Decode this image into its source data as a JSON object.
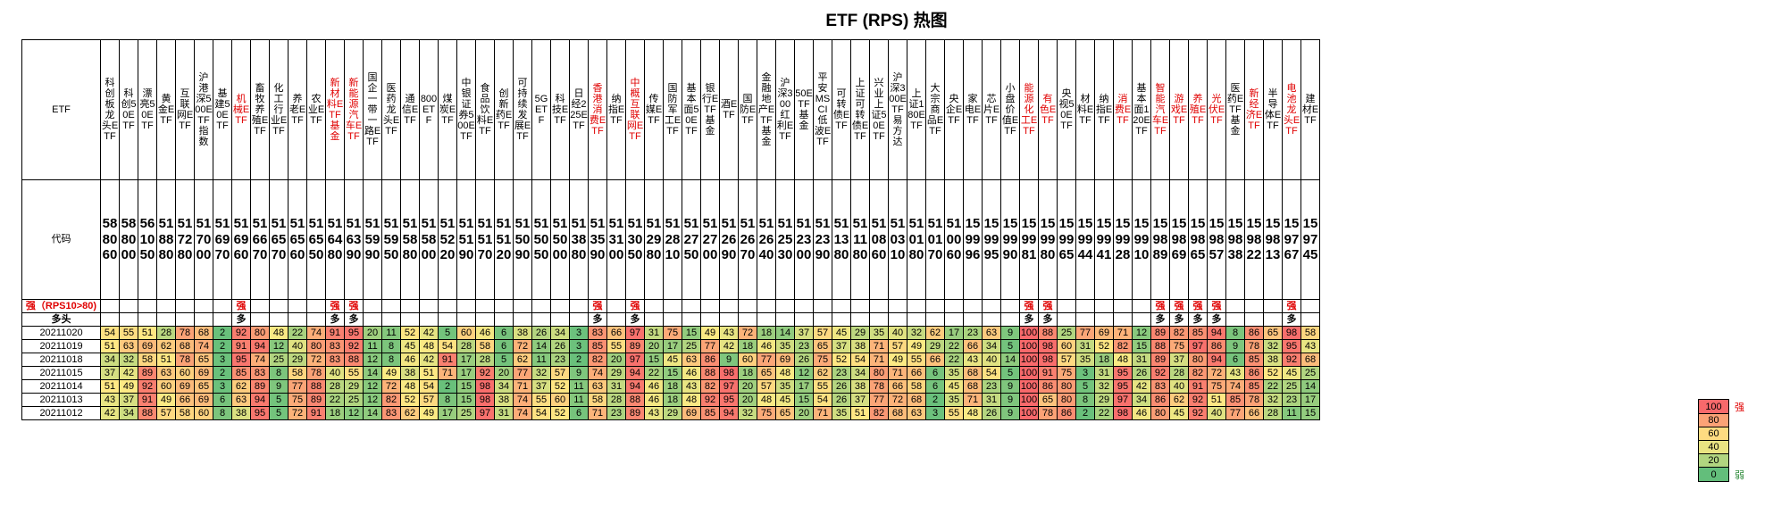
{
  "chart_data": {
    "type": "heatmap",
    "title": "ETF (RPS) 热图",
    "header_label": "ETF",
    "code_label": "代码",
    "strong_label": "强（RPS10>80)",
    "duotou_label": "多头",
    "strong_mark": "强",
    "duotou_mark": "多",
    "columns": [
      {
        "name": "科创板龙头ETF",
        "code": "588060",
        "hl": false,
        "strong": false,
        "duotou": false
      },
      {
        "name": "科创50ETF",
        "code": "588000",
        "hl": false,
        "strong": false,
        "duotou": false
      },
      {
        "name": "漂亮50ETF",
        "code": "561050",
        "hl": false,
        "strong": false,
        "duotou": false
      },
      {
        "name": "黄金ETF",
        "code": "518880",
        "hl": false,
        "strong": false,
        "duotou": false
      },
      {
        "name": "互联网ETF",
        "code": "517280",
        "hl": false,
        "strong": false,
        "duotou": false
      },
      {
        "name": "沪港深500ETF指数",
        "code": "517000",
        "hl": false,
        "strong": false,
        "duotou": false
      },
      {
        "name": "基建50ETF",
        "code": "516970",
        "hl": false,
        "strong": false,
        "duotou": false
      },
      {
        "name": "机械ETF",
        "code": "516960",
        "hl": true,
        "strong": true,
        "duotou": true
      },
      {
        "name": "畜牧养殖ETF",
        "code": "516670",
        "hl": false,
        "strong": false,
        "duotou": false
      },
      {
        "name": "化工行业ETF",
        "code": "516570",
        "hl": false,
        "strong": false,
        "duotou": false
      },
      {
        "name": "养老ETF",
        "code": "516560",
        "hl": false,
        "strong": false,
        "duotou": false
      },
      {
        "name": "农业ETF",
        "code": "516550",
        "hl": false,
        "strong": false,
        "duotou": false
      },
      {
        "name": "新材料ETF基金",
        "code": "516480",
        "hl": true,
        "strong": true,
        "duotou": true
      },
      {
        "name": "新能源汽车ETF",
        "code": "516390",
        "hl": true,
        "strong": true,
        "duotou": true
      },
      {
        "name": "国企一带一路ETF",
        "code": "515990",
        "hl": false,
        "strong": false,
        "duotou": false
      },
      {
        "name": "医药龙头ETF",
        "code": "515950",
        "hl": false,
        "strong": false,
        "duotou": false
      },
      {
        "name": "通信ETF",
        "code": "515880",
        "hl": false,
        "strong": false,
        "duotou": false
      },
      {
        "name": "800ETF",
        "code": "515800",
        "hl": false,
        "strong": false,
        "duotou": false
      },
      {
        "name": "煤炭ETF",
        "code": "515220",
        "hl": false,
        "strong": false,
        "duotou": false
      },
      {
        "name": "中银证券500ETF",
        "code": "515190",
        "hl": false,
        "strong": false,
        "duotou": false
      },
      {
        "name": "食品饮料ETF",
        "code": "515170",
        "hl": false,
        "strong": false,
        "duotou": false
      },
      {
        "name": "创新药ETF",
        "code": "515120",
        "hl": false,
        "strong": false,
        "duotou": false
      },
      {
        "name": "可持续发展ETF",
        "code": "515090",
        "hl": false,
        "strong": false,
        "duotou": false
      },
      {
        "name": "5GETF",
        "code": "515050",
        "hl": false,
        "strong": false,
        "duotou": false
      },
      {
        "name": "科技ETF",
        "code": "515000",
        "hl": false,
        "strong": false,
        "duotou": false
      },
      {
        "name": "日经225ETF",
        "code": "513880",
        "hl": false,
        "strong": false,
        "duotou": false
      },
      {
        "name": "香港消费ETF",
        "code": "513590",
        "hl": true,
        "strong": true,
        "duotou": true
      },
      {
        "name": "纳指ETF",
        "code": "513100",
        "hl": false,
        "strong": false,
        "duotou": false
      },
      {
        "name": "中概互联网ETF",
        "code": "513050",
        "hl": true,
        "strong": true,
        "duotou": true
      },
      {
        "name": "传媒ETF",
        "code": "512980",
        "hl": false,
        "strong": false,
        "duotou": false
      },
      {
        "name": "国防军工ETF",
        "code": "512810",
        "hl": false,
        "strong": false,
        "duotou": false
      },
      {
        "name": "基本面50ETF",
        "code": "512750",
        "hl": false,
        "strong": false,
        "duotou": false
      },
      {
        "name": "银行ETF基金",
        "code": "512700",
        "hl": false,
        "strong": false,
        "duotou": false
      },
      {
        "name": "酒ETF",
        "code": "512690",
        "hl": false,
        "strong": false,
        "duotou": false
      },
      {
        "name": "国防ETF",
        "code": "512670",
        "hl": false,
        "strong": false,
        "duotou": false
      },
      {
        "name": "金融地产ETF基金",
        "code": "512640",
        "hl": false,
        "strong": false,
        "duotou": false
      },
      {
        "name": "沪深300红利ETF",
        "code": "512530",
        "hl": false,
        "strong": false,
        "duotou": false
      },
      {
        "name": "50ETF基金",
        "code": "512300",
        "hl": false,
        "strong": false,
        "duotou": false
      },
      {
        "name": "平安MSCI低波ETF",
        "code": "512390",
        "hl": false,
        "strong": false,
        "duotou": false
      },
      {
        "name": "可转债ETF",
        "code": "511380",
        "hl": false,
        "strong": false,
        "duotou": false
      },
      {
        "name": "上证可转债ETF",
        "code": "511180",
        "hl": false,
        "strong": false,
        "duotou": false
      },
      {
        "name": "兴业上证50ETF",
        "code": "510860",
        "hl": false,
        "strong": false,
        "duotou": false
      },
      {
        "name": "沪深300ETF易方达",
        "code": "510310",
        "hl": false,
        "strong": false,
        "duotou": false
      },
      {
        "name": "上证180ETF",
        "code": "510180",
        "hl": false,
        "strong": false,
        "duotou": false
      },
      {
        "name": "大宗商品ETF",
        "code": "510170",
        "hl": false,
        "strong": false,
        "duotou": false
      },
      {
        "name": "央企ETF",
        "code": "510060",
        "hl": false,
        "strong": false,
        "duotou": false
      },
      {
        "name": "家电ETF",
        "code": "159996",
        "hl": false,
        "strong": false,
        "duotou": false
      },
      {
        "name": "芯片ETF",
        "code": "159995",
        "hl": false,
        "strong": false,
        "duotou": false
      },
      {
        "name": "小盘价值ETF",
        "code": "159990",
        "hl": false,
        "strong": false,
        "duotou": false
      },
      {
        "name": "能源化工ETF",
        "code": "159981",
        "hl": true,
        "strong": true,
        "duotou": true
      },
      {
        "name": "有色ETF",
        "code": "159980",
        "hl": true,
        "strong": true,
        "duotou": true
      },
      {
        "name": "央视50ETF",
        "code": "159965",
        "hl": false,
        "strong": false,
        "duotou": false
      },
      {
        "name": "材料ETF",
        "code": "159944",
        "hl": false,
        "strong": false,
        "duotou": false
      },
      {
        "name": "纳指ETF",
        "code": "159941",
        "hl": false,
        "strong": false,
        "duotou": false
      },
      {
        "name": "消费ETF",
        "code": "159928",
        "hl": true,
        "strong": false,
        "duotou": false
      },
      {
        "name": "基本面120ETF",
        "code": "159910",
        "hl": false,
        "strong": false,
        "duotou": false
      },
      {
        "name": "智能汽车ETF",
        "code": "159889",
        "hl": true,
        "strong": true,
        "duotou": true
      },
      {
        "name": "游戏ETF",
        "code": "159869",
        "hl": true,
        "strong": true,
        "duotou": true
      },
      {
        "name": "养殖ETF",
        "code": "159865",
        "hl": true,
        "strong": true,
        "duotou": true
      },
      {
        "name": "光伏ETF",
        "code": "159857",
        "hl": true,
        "strong": true,
        "duotou": true
      },
      {
        "name": "医药ETF基金",
        "code": "159838",
        "hl": false,
        "strong": false,
        "duotou": false
      },
      {
        "name": "新经济ETF",
        "code": "159822",
        "hl": true,
        "strong": false,
        "duotou": false
      },
      {
        "name": "半导体ETF",
        "code": "159813",
        "hl": false,
        "strong": false,
        "duotou": false
      },
      {
        "name": "电池龙头ETF",
        "code": "159767",
        "hl": true,
        "strong": true,
        "duotou": true
      },
      {
        "name": "建材ETF",
        "code": "159745",
        "hl": false,
        "strong": false,
        "duotou": false
      }
    ],
    "dates": [
      "20211020",
      "20211019",
      "20211018",
      "20211015",
      "20211014",
      "20211013",
      "20211012"
    ],
    "values": [
      [
        54,
        55,
        51,
        28,
        78,
        68,
        2,
        92,
        80,
        48,
        22,
        74,
        91,
        95,
        20,
        11,
        52,
        42,
        5,
        60,
        46,
        6,
        38,
        26,
        34,
        3,
        83,
        66,
        97,
        31,
        75,
        15,
        49,
        43,
        72,
        18,
        14,
        37,
        57,
        45,
        29,
        35,
        40,
        32,
        62,
        17,
        23,
        63,
        9,
        100,
        88,
        25,
        77,
        69,
        71,
        12,
        89,
        82,
        85,
        94,
        8,
        86,
        65,
        98,
        58
      ],
      [
        51,
        63,
        69,
        62,
        68,
        74,
        2,
        91,
        94,
        12,
        40,
        80,
        83,
        92,
        11,
        8,
        45,
        48,
        54,
        28,
        58,
        6,
        72,
        14,
        26,
        3,
        85,
        55,
        89,
        20,
        17,
        25,
        77,
        42,
        18,
        46,
        35,
        23,
        65,
        37,
        38,
        71,
        57,
        49,
        29,
        22,
        66,
        34,
        5,
        100,
        98,
        60,
        31,
        52,
        82,
        15,
        88,
        75,
        97,
        86,
        9,
        78,
        32,
        95,
        43
      ],
      [
        34,
        32,
        58,
        51,
        78,
        65,
        3,
        95,
        74,
        25,
        29,
        72,
        83,
        88,
        12,
        8,
        46,
        42,
        91,
        17,
        28,
        5,
        62,
        11,
        23,
        2,
        82,
        20,
        97,
        15,
        45,
        63,
        86,
        9,
        60,
        77,
        69,
        26,
        75,
        52,
        54,
        71,
        49,
        55,
        66,
        22,
        43,
        40,
        14,
        100,
        98,
        57,
        35,
        18,
        48,
        31,
        89,
        37,
        80,
        94,
        6,
        85,
        38,
        92,
        68
      ],
      [
        37,
        42,
        89,
        63,
        60,
        69,
        2,
        85,
        83,
        8,
        58,
        78,
        40,
        55,
        14,
        49,
        38,
        51,
        71,
        17,
        92,
        20,
        77,
        32,
        57,
        9,
        74,
        29,
        94,
        22,
        15,
        46,
        88,
        98,
        18,
        65,
        48,
        12,
        62,
        23,
        34,
        80,
        71,
        66,
        6,
        35,
        68,
        54,
        5,
        100,
        91,
        75,
        3,
        31,
        95,
        26,
        92,
        28,
        82,
        72,
        43,
        86,
        52,
        45,
        25
      ],
      [
        51,
        49,
        92,
        60,
        69,
        65,
        3,
        62,
        89,
        9,
        77,
        88,
        28,
        29,
        12,
        72,
        48,
        54,
        2,
        15,
        98,
        34,
        71,
        37,
        52,
        11,
        63,
        31,
        94,
        46,
        18,
        43,
        82,
        97,
        20,
        57,
        35,
        17,
        55,
        26,
        38,
        78,
        66,
        58,
        6,
        45,
        68,
        23,
        9,
        100,
        86,
        80,
        5,
        32,
        95,
        42,
        83,
        40,
        91,
        75,
        74,
        85,
        22,
        25,
        14
      ],
      [
        43,
        37,
        91,
        49,
        66,
        69,
        6,
        63,
        94,
        5,
        75,
        89,
        22,
        25,
        12,
        82,
        52,
        57,
        8,
        15,
        98,
        38,
        74,
        55,
        60,
        11,
        58,
        28,
        88,
        46,
        18,
        48,
        92,
        95,
        20,
        48,
        45,
        15,
        54,
        26,
        37,
        77,
        72,
        68,
        2,
        35,
        71,
        31,
        9,
        100,
        65,
        80,
        8,
        29,
        97,
        34,
        86,
        62,
        92,
        51,
        85,
        78,
        32,
        23,
        17
      ],
      [
        42,
        34,
        88,
        57,
        58,
        60,
        8,
        38,
        95,
        5,
        72,
        91,
        18,
        12,
        14,
        83,
        62,
        49,
        17,
        25,
        97,
        31,
        74,
        54,
        52,
        6,
        71,
        23,
        89,
        43,
        29,
        69,
        85,
        94,
        32,
        75,
        65,
        20,
        71,
        35,
        51,
        82,
        68,
        63,
        3,
        55,
        48,
        26,
        9,
        100,
        78,
        86,
        2,
        22,
        98,
        46,
        80,
        45,
        92,
        40,
        77,
        66,
        28,
        11,
        15
      ]
    ],
    "ylim": [
      0,
      100
    ],
    "legend": [
      {
        "value": "100",
        "color": "#f8696b",
        "text": "强"
      },
      {
        "value": "80",
        "color": "#fba276",
        "text": ""
      },
      {
        "value": "60",
        "color": "#fedb81",
        "text": ""
      },
      {
        "value": "40",
        "color": "#e9e482",
        "text": ""
      },
      {
        "value": "20",
        "color": "#b1d580",
        "text": ""
      },
      {
        "value": "0",
        "color": "#63be7b",
        "text": "弱"
      }
    ],
    "colors": {
      "low": "#63be7b",
      "mid": "#ffeb84",
      "high": "#f8696b",
      "text_red": "#e00000"
    }
  }
}
